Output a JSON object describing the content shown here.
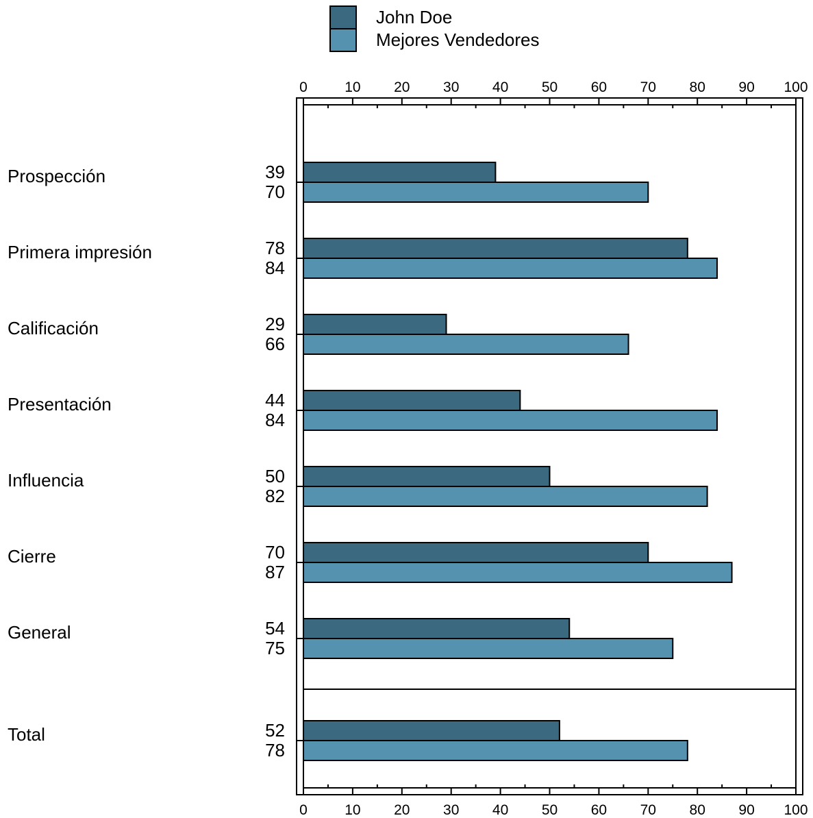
{
  "chart_data": {
    "type": "bar",
    "orientation": "horizontal",
    "categories": [
      "Prospección",
      "Primera impresión",
      "Calificación",
      "Presentación",
      "Influencia",
      "Cierre",
      "General",
      "Total"
    ],
    "series": [
      {
        "name": "John Doe",
        "color": "#3b6a80",
        "values": [
          39,
          78,
          29,
          44,
          50,
          70,
          54,
          52
        ]
      },
      {
        "name": "Mejores Vendedores",
        "color": "#5592b0",
        "values": [
          70,
          84,
          66,
          84,
          82,
          87,
          75,
          78
        ]
      }
    ],
    "xlim": [
      0,
      100
    ],
    "xticks": [
      0,
      10,
      20,
      30,
      40,
      50,
      60,
      70,
      80,
      90,
      100
    ],
    "xaxis_position": "top and bottom",
    "legend_position": "top-center",
    "separator_before": "Total",
    "grid": false
  }
}
